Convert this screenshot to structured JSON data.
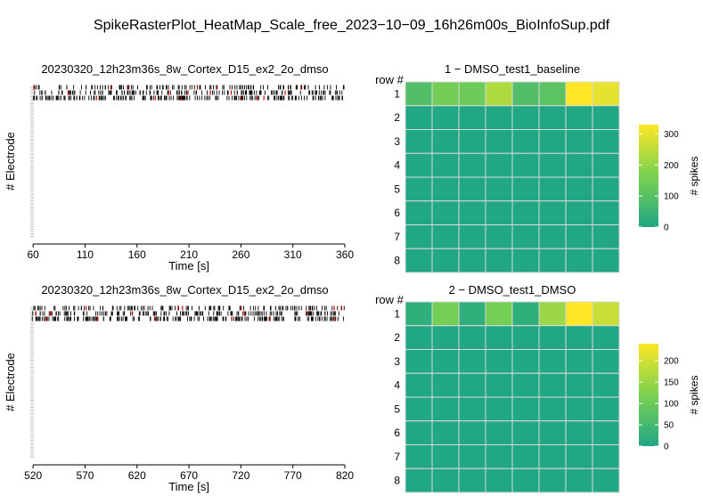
{
  "page_title": "SpikeRasterPlot_HeatMap_Scale_free_2023−10−09_16h26m00s_BioInfoSup.pdf",
  "colors": {
    "low": "#21a784",
    "mid": "#7ad151",
    "high": "#fde725",
    "raster": "#000000",
    "burst": "#cc0000",
    "grid": "#d9d9d9"
  },
  "chart_data": [
    {
      "type": "scatter",
      "title": "20230320_12h23m36s_8w_Cortex_D15_ex2_2o_dmso",
      "xlabel": "Time [s]",
      "ylabel": "# Electrode",
      "xlim": [
        59,
        360
      ],
      "x_ticks": [
        60,
        110,
        160,
        210,
        260,
        310,
        360
      ],
      "x_tick_labels": [
        "60",
        "110",
        "160",
        "210",
        "260",
        "310",
        "360"
      ],
      "rows_active": 3,
      "rows_total": 64
    },
    {
      "type": "heatmap",
      "title": "1 − DMSO_test1_baseline",
      "row_axis_label": "row #",
      "rows": [
        "1",
        "2",
        "3",
        "4",
        "5",
        "6",
        "7",
        "8"
      ],
      "columns": 8,
      "values": [
        [
          90,
          150,
          140,
          230,
          90,
          110,
          330,
          300
        ],
        [
          0,
          0,
          0,
          0,
          0,
          0,
          0,
          0
        ],
        [
          0,
          0,
          0,
          0,
          0,
          0,
          0,
          0
        ],
        [
          0,
          0,
          0,
          0,
          0,
          0,
          0,
          0
        ],
        [
          0,
          0,
          0,
          0,
          0,
          0,
          0,
          0
        ],
        [
          0,
          0,
          0,
          0,
          0,
          0,
          0,
          0
        ],
        [
          0,
          0,
          0,
          0,
          0,
          0,
          0,
          0
        ],
        [
          0,
          0,
          0,
          0,
          0,
          0,
          0,
          0
        ]
      ],
      "colorbar": {
        "label": "# spikes",
        "range": [
          0,
          330
        ],
        "ticks": [
          0,
          100,
          200,
          300
        ],
        "tick_labels": [
          "0",
          "100",
          "200",
          "300"
        ]
      }
    },
    {
      "type": "scatter",
      "title": "20230320_12h23m36s_8w_Cortex_D15_ex2_2o_dmso",
      "xlabel": "Time [s]",
      "ylabel": "# Electrode",
      "xlim": [
        519,
        820
      ],
      "x_ticks": [
        520,
        570,
        620,
        670,
        720,
        770,
        820
      ],
      "x_tick_labels": [
        "520",
        "570",
        "620",
        "670",
        "720",
        "770",
        "820"
      ],
      "rows_active": 3,
      "rows_total": 64
    },
    {
      "type": "heatmap",
      "title": "2 − DMSO_test1_DMSO",
      "row_axis_label": "row #",
      "rows": [
        "1",
        "2",
        "3",
        "4",
        "5",
        "6",
        "7",
        "8"
      ],
      "columns": 8,
      "values": [
        [
          20,
          110,
          20,
          110,
          20,
          150,
          240,
          190
        ],
        [
          0,
          0,
          0,
          0,
          0,
          0,
          0,
          0
        ],
        [
          0,
          0,
          0,
          0,
          0,
          0,
          0,
          0
        ],
        [
          0,
          0,
          0,
          0,
          0,
          0,
          0,
          0
        ],
        [
          0,
          0,
          0,
          0,
          0,
          0,
          0,
          0
        ],
        [
          0,
          0,
          0,
          0,
          0,
          0,
          0,
          0
        ],
        [
          0,
          0,
          0,
          0,
          0,
          0,
          0,
          0
        ],
        [
          0,
          0,
          0,
          0,
          0,
          0,
          0,
          0
        ]
      ],
      "colorbar": {
        "label": "# spikes",
        "range": [
          0,
          240
        ],
        "ticks": [
          0,
          50,
          100,
          150,
          200
        ],
        "tick_labels": [
          "0",
          "50",
          "100",
          "150",
          "200"
        ]
      }
    }
  ]
}
